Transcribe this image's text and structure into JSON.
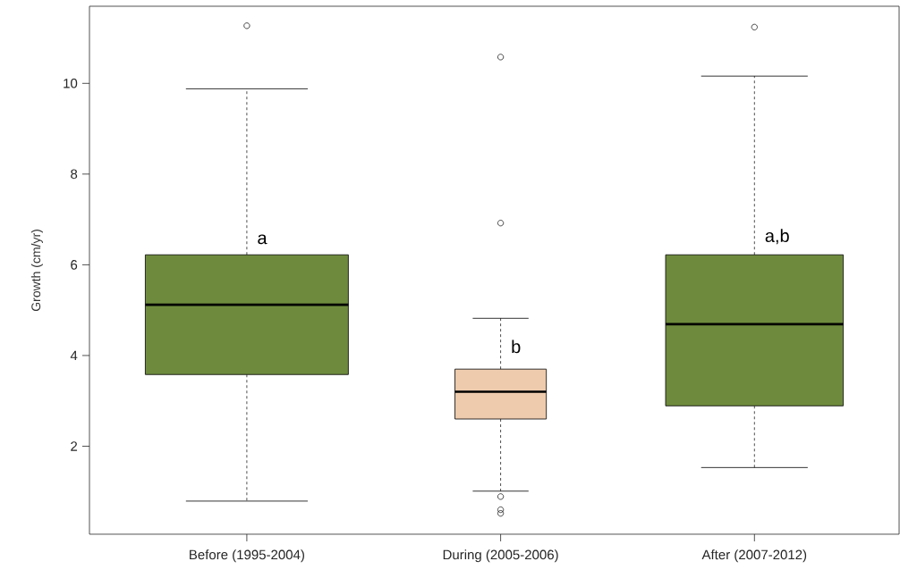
{
  "chart_data": {
    "type": "box",
    "ylabel": "Growth (cm/yr)",
    "categories": [
      "Before (1995-2004)",
      "During (2005-2006)",
      "After (2007-2012)"
    ],
    "colors": [
      "#6e8b3d",
      "#eecbad",
      "#6e8b3d"
    ],
    "boxes": [
      {
        "low": 0.79,
        "q1": 3.58,
        "median": 5.12,
        "q3": 6.22,
        "high": 9.88,
        "outliers": [
          11.27
        ]
      },
      {
        "low": 1.01,
        "q1": 2.6,
        "median": 3.2,
        "q3": 3.7,
        "high": 4.82,
        "outliers": [
          10.58,
          6.92,
          0.89,
          0.6,
          0.52
        ]
      },
      {
        "low": 1.53,
        "q1": 2.89,
        "median": 4.69,
        "q3": 6.22,
        "high": 10.16,
        "outliers": [
          11.24
        ]
      }
    ],
    "ylim": [
      0.06,
      11.7
    ],
    "yticks": [
      2,
      4,
      6,
      8,
      10
    ],
    "grid": false,
    "annotations": [
      {
        "text": "a",
        "x": "Before (1995-2004)",
        "y": 6.45
      },
      {
        "text": "b",
        "x": "During (2005-2006)",
        "y": 4.05
      },
      {
        "text": "a,b",
        "x": "After (2007-2012)",
        "y": 6.45
      }
    ]
  }
}
